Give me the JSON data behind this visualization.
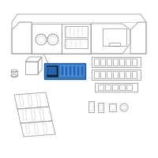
{
  "bg_color": "#ffffff",
  "gc": "#999999",
  "gc2": "#777777",
  "hc": "#3a7abf",
  "hc2": "#1a5a9f",
  "hc_inner": "#2060a0",
  "lk": "#bbbbbb",
  "dk": "#555555",
  "fig_width": 2.0,
  "fig_height": 2.0,
  "dpi": 100
}
